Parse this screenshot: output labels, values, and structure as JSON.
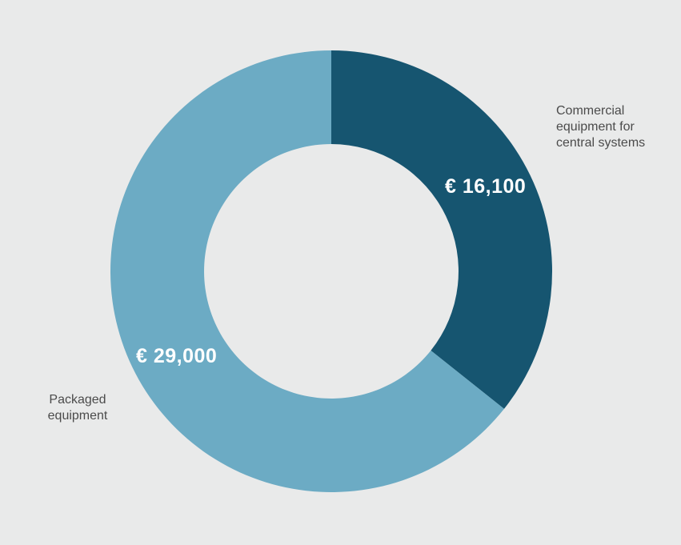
{
  "background_color": "#E9EAEA",
  "chart_data": {
    "type": "pie",
    "subtype": "donut",
    "direction": "clockwise",
    "start_angle_deg": 0,
    "inner_radius_ratio": 0.576,
    "legend_position": "none",
    "segments": [
      {
        "label": "Commercial equipment for central systems",
        "value": 16100,
        "value_label": "€ 16,100",
        "color": "#165570"
      },
      {
        "label": "Packaged equipment",
        "value": 29000,
        "value_label": "€ 29,000",
        "color": "#6CABC4"
      }
    ]
  }
}
